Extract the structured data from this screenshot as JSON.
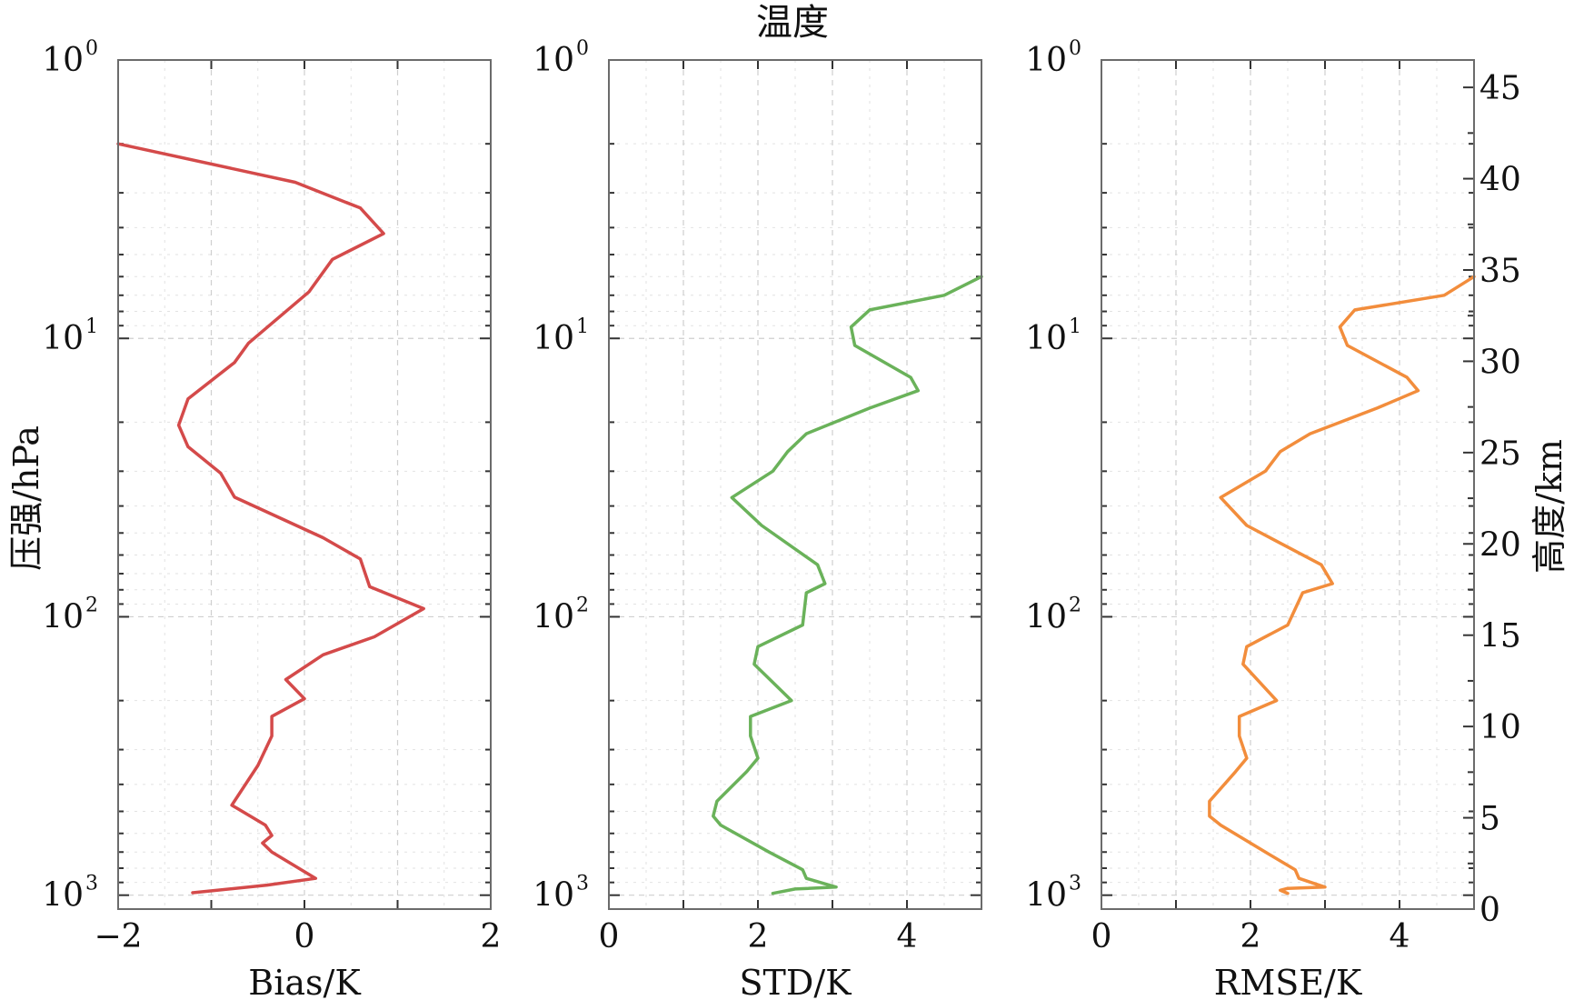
{
  "title": "温度",
  "y_left_label": "压强/hPa",
  "y_right_label": "高度/km",
  "chart_data": [
    {
      "type": "line",
      "xlabel": "Bias/K",
      "xlim": [
        -2,
        2
      ],
      "xticks": [
        "−2",
        "0",
        "2"
      ],
      "ylabel": "压强/hPa",
      "y_scale": "log",
      "y_reversed": true,
      "ylim": [
        1,
        1000
      ],
      "grid": true,
      "series": [
        {
          "color": "#d44a4a",
          "x": [
            -2.0,
            -0.1,
            0.6,
            0.85,
            0.3,
            0.05,
            -0.6,
            -0.75,
            -1.25,
            -1.35,
            -1.25,
            -0.9,
            -0.75,
            0.2,
            0.6,
            0.7,
            1.28,
            0.75,
            0.2,
            -0.2,
            0.0,
            -0.35,
            -0.35,
            -0.5,
            -0.78,
            -0.42,
            -0.35,
            -0.45,
            -0.35,
            0.12,
            -0.4,
            -1.2
          ],
          "y": [
            2.0,
            2.75,
            3.4,
            4.2,
            5.2,
            6.8,
            10.4,
            12.2,
            16.5,
            20.5,
            24.5,
            30.5,
            37.2,
            52.0,
            62.0,
            78.0,
            93.5,
            118.0,
            137.0,
            168.0,
            197.0,
            228.0,
            268.0,
            342.0,
            475.0,
            560.0,
            610.0,
            650.0,
            700.0,
            870.0,
            920.0,
            980.0
          ]
        }
      ]
    },
    {
      "type": "line",
      "xlabel": "STD/K",
      "xlim": [
        0,
        5
      ],
      "xticks": [
        "0",
        "2",
        "4"
      ],
      "y_scale": "log",
      "y_reversed": true,
      "ylim": [
        1,
        1000
      ],
      "grid": true,
      "series": [
        {
          "color": "#6ab25a",
          "x": [
            5.0,
            4.5,
            3.5,
            3.25,
            3.3,
            4.05,
            4.15,
            3.5,
            2.65,
            2.4,
            2.2,
            1.65,
            2.05,
            2.8,
            2.9,
            2.65,
            2.6,
            2.0,
            1.95,
            2.45,
            1.9,
            1.9,
            2.0,
            1.85,
            1.45,
            1.4,
            1.5,
            2.15,
            2.6,
            2.65,
            3.05,
            2.5,
            2.2
          ],
          "y": [
            6.0,
            7.0,
            7.9,
            9.1,
            10.6,
            13.8,
            15.4,
            17.8,
            22.0,
            25.5,
            30.0,
            37.3,
            47.0,
            65.0,
            76.0,
            82.0,
            107.0,
            128.0,
            148.0,
            200.0,
            228.0,
            268.0,
            322.0,
            360.0,
            460.0,
            520.0,
            560.0,
            700.0,
            810.0,
            870.0,
            935.0,
            950.0,
            985.0
          ]
        }
      ]
    },
    {
      "type": "line",
      "xlabel": "RMSE/K",
      "xlim": [
        0,
        5
      ],
      "xticks": [
        "0",
        "2",
        "4"
      ],
      "ylabel_right": "高度/km",
      "y2lim": [
        0,
        46.5
      ],
      "y2ticks": [
        0,
        5,
        10,
        15,
        20,
        25,
        30,
        35,
        40,
        45
      ],
      "y_scale": "log",
      "y_reversed": true,
      "ylim": [
        1,
        1000
      ],
      "grid": true,
      "series": [
        {
          "color": "#f28d3c",
          "x": [
            5.0,
            4.6,
            3.4,
            3.2,
            3.3,
            4.1,
            4.25,
            3.7,
            2.8,
            2.4,
            2.2,
            1.6,
            1.95,
            2.95,
            3.1,
            2.7,
            2.5,
            1.95,
            1.9,
            2.35,
            1.85,
            1.85,
            1.95,
            1.8,
            1.45,
            1.45,
            1.6,
            2.2,
            2.6,
            2.65,
            3.0,
            2.5,
            2.4,
            2.5
          ],
          "y": [
            6.0,
            7.0,
            7.9,
            9.1,
            10.6,
            13.8,
            15.4,
            17.8,
            22.0,
            25.5,
            30.0,
            37.3,
            47.0,
            65.0,
            76.0,
            82.0,
            107.0,
            128.0,
            148.0,
            200.0,
            228.0,
            268.0,
            322.0,
            360.0,
            460.0,
            520.0,
            560.0,
            700.0,
            810.0,
            870.0,
            935.0,
            945.0,
            960.0,
            985.0
          ]
        }
      ]
    }
  ]
}
